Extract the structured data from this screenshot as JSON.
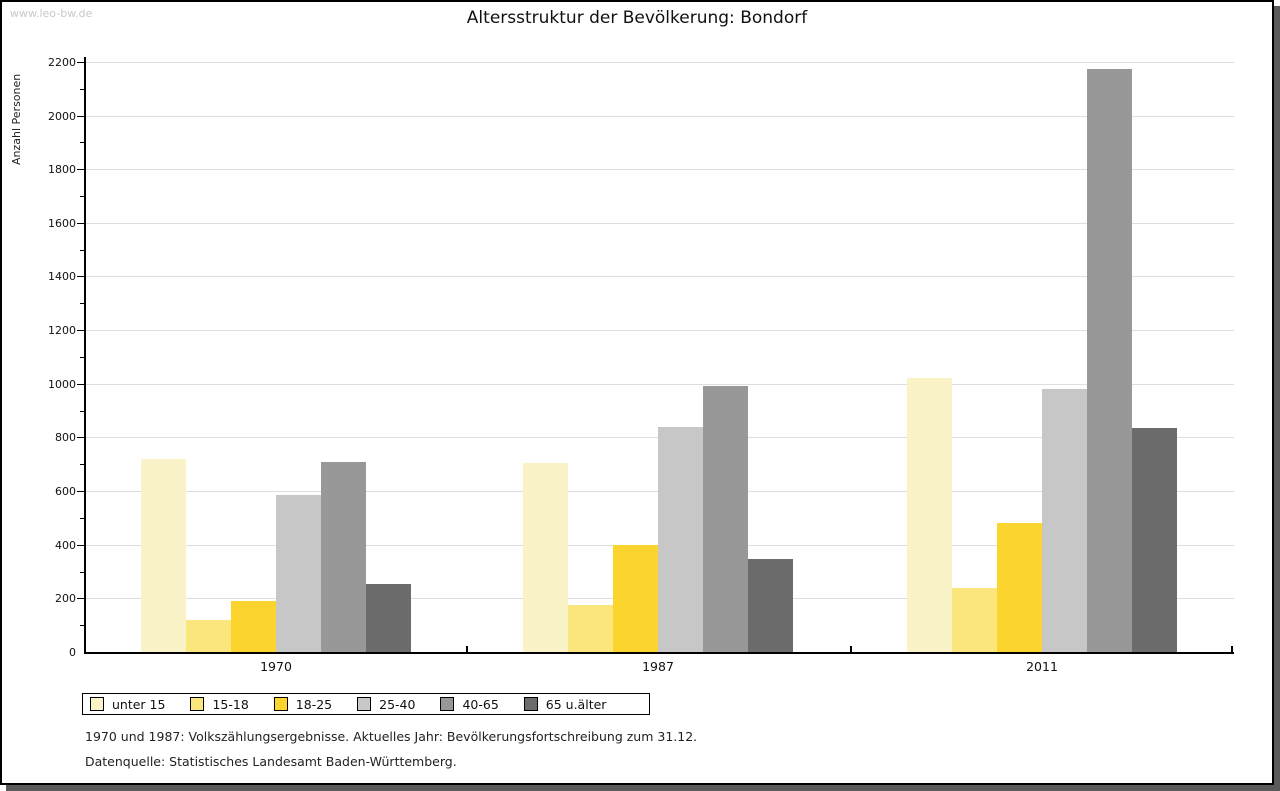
{
  "watermark": {
    "text": "www.leo-bw.de"
  },
  "header": {
    "title": "Altersstruktur der Bevölkerung: Bondorf"
  },
  "chart_data": {
    "type": "bar",
    "title": "Altersstruktur der Bevölkerung: Bondorf",
    "ylabel": "Anzahl Personen",
    "xlabel": "",
    "categories": [
      "1970",
      "1987",
      "2011"
    ],
    "series": [
      {
        "name": "unter 15",
        "color": "#FAF3C8",
        "values": [
          720,
          705,
          1020
        ]
      },
      {
        "name": "15-18",
        "color": "#FAE67C",
        "values": [
          120,
          175,
          240
        ]
      },
      {
        "name": "18-25",
        "color": "#FCD42E",
        "values": [
          190,
          400,
          480
        ]
      },
      {
        "name": "25-40",
        "color": "#C7C7C7",
        "values": [
          585,
          840,
          980
        ]
      },
      {
        "name": "40-65",
        "color": "#989898",
        "values": [
          710,
          990,
          2175
        ]
      },
      {
        "name": "65 u.älter",
        "color": "#6C6C6C",
        "values": [
          255,
          345,
          835
        ]
      }
    ],
    "ylim": [
      0,
      2200
    ],
    "ytick_step": 200,
    "yminor_step": 100,
    "ytick_labels": [
      "0",
      "200",
      "400",
      "600",
      "800",
      "1000",
      "1200",
      "1400",
      "1600",
      "1800",
      "2000",
      "2200"
    ],
    "grid": "horizontal-major",
    "gridline_color": "#DEDEDE",
    "legend_position": "bottom-left"
  },
  "footnotes": {
    "line1": "1970 und 1987: Volkszählungsergebnisse. Aktuelles Jahr: Bevölkerungsfortschreibung zum 31.12.",
    "line2": "Datenquelle: Statistisches Landesamt Baden-Württemberg."
  }
}
